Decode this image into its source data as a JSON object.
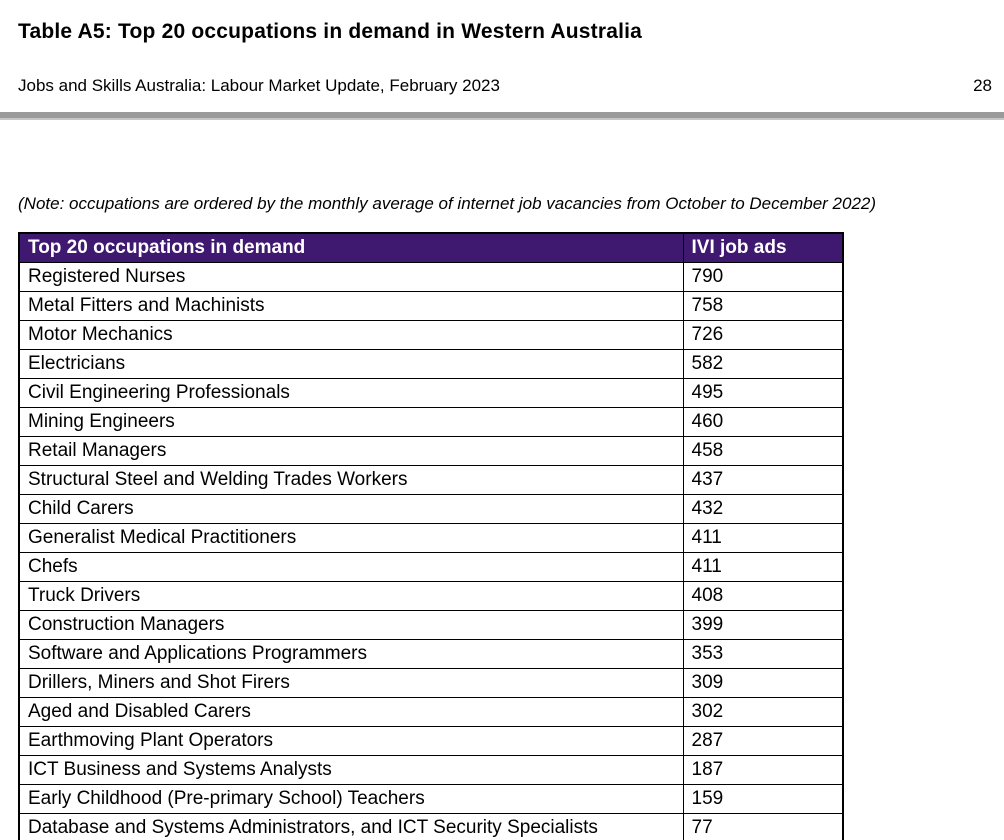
{
  "page": {
    "title": "Table A5: Top 20 occupations in demand in Western Australia",
    "subtitle": "Jobs and Skills Australia: Labour Market Update, February 2023",
    "page_number": "28",
    "note": "(Note: occupations are ordered by the monthly average of internet job vacancies from October to December 2022)"
  },
  "colors": {
    "table_header_bg": "#3f1970",
    "table_header_text": "#ffffff",
    "divider_bar": "#9a9a9a",
    "table_border": "#000000"
  },
  "table": {
    "headers": {
      "occupation": "Top 20 occupations in demand",
      "ads": "IVI job ads"
    },
    "rows": [
      {
        "occupation": "Registered Nurses",
        "ivi_job_ads": "790"
      },
      {
        "occupation": "Metal Fitters and Machinists",
        "ivi_job_ads": "758"
      },
      {
        "occupation": "Motor Mechanics",
        "ivi_job_ads": "726"
      },
      {
        "occupation": "Electricians",
        "ivi_job_ads": "582"
      },
      {
        "occupation": "Civil Engineering Professionals",
        "ivi_job_ads": "495"
      },
      {
        "occupation": "Mining Engineers",
        "ivi_job_ads": "460"
      },
      {
        "occupation": "Retail Managers",
        "ivi_job_ads": "458"
      },
      {
        "occupation": "Structural Steel and Welding Trades Workers",
        "ivi_job_ads": "437"
      },
      {
        "occupation": "Child Carers",
        "ivi_job_ads": "432"
      },
      {
        "occupation": "Generalist Medical Practitioners",
        "ivi_job_ads": "411"
      },
      {
        "occupation": "Chefs",
        "ivi_job_ads": "411"
      },
      {
        "occupation": "Truck Drivers",
        "ivi_job_ads": "408"
      },
      {
        "occupation": "Construction Managers",
        "ivi_job_ads": "399"
      },
      {
        "occupation": "Software and Applications Programmers",
        "ivi_job_ads": "353"
      },
      {
        "occupation": "Drillers, Miners and Shot Firers",
        "ivi_job_ads": "309"
      },
      {
        "occupation": "Aged and Disabled Carers",
        "ivi_job_ads": "302"
      },
      {
        "occupation": "Earthmoving Plant Operators",
        "ivi_job_ads": "287"
      },
      {
        "occupation": "ICT Business and Systems Analysts",
        "ivi_job_ads": "187"
      },
      {
        "occupation": "Early Childhood (Pre-primary School) Teachers",
        "ivi_job_ads": "159"
      },
      {
        "occupation": "Database and Systems Administrators, and ICT Security Specialists",
        "ivi_job_ads": "77"
      }
    ]
  }
}
